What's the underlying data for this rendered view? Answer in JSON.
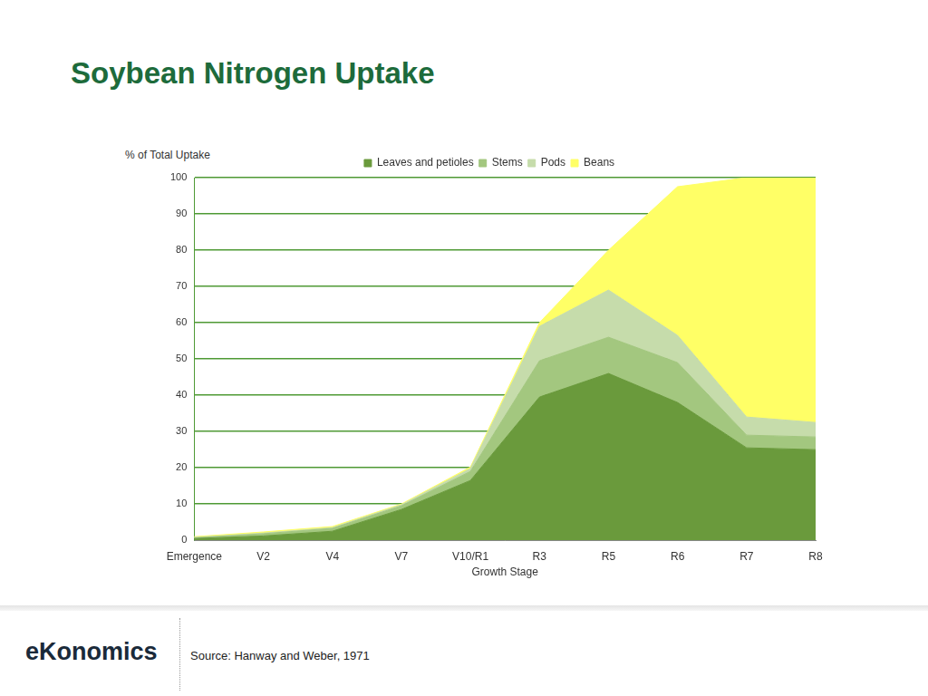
{
  "chart_data": {
    "type": "line",
    "stacked": true,
    "title": "Soybean Nitrogen Uptake",
    "y_label": "% of Total Uptake",
    "x_label": "Growth Stage",
    "categories": [
      "Emergence",
      "V2",
      "V4",
      "V7",
      "V10/R1",
      "R3",
      "R5",
      "R6",
      "R7",
      "R8"
    ],
    "series": [
      {
        "name": "Leaves and petioles",
        "color": "#6a9a3c",
        "values": [
          0.5,
          1.2,
          2.5,
          8.5,
          16.5,
          39.5,
          46,
          38,
          25.5,
          25
        ]
      },
      {
        "name": "Stems",
        "color": "#a3c77f",
        "values": [
          0.2,
          0.6,
          0.8,
          1,
          2.5,
          10,
          10,
          11,
          3.5,
          3.5
        ]
      },
      {
        "name": "Pods",
        "color": "#c6dcab",
        "values": [
          0.1,
          0.2,
          0.2,
          0.3,
          0.8,
          9.5,
          13,
          7.5,
          5,
          4
        ]
      },
      {
        "name": "Beans",
        "color": "#ffff66",
        "values": [
          0.2,
          0.3,
          0.3,
          0.2,
          0.4,
          1,
          11,
          41,
          66,
          67.5
        ]
      }
    ],
    "ylim": [
      0,
      100
    ],
    "yticks": [
      0,
      10,
      20,
      30,
      40,
      50,
      60,
      70,
      80,
      90,
      100
    ],
    "grid": true,
    "legend": "top"
  },
  "footer": {
    "logo": "eKonomics",
    "source": "Source: Hanway and Weber, 1971"
  }
}
